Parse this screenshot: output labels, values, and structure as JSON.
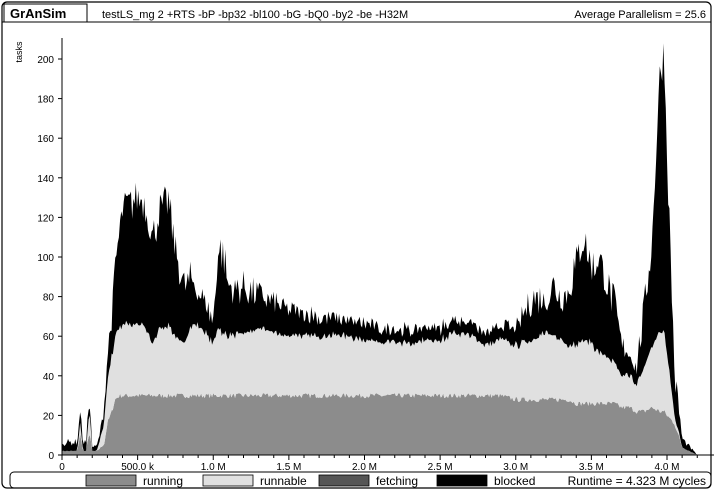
{
  "header": {
    "app_name": "GrAnSim",
    "command": "testLS_mg 2 +RTS -bP -bp32 -bl100 -bG -bQ0 -by2 -be -H32M",
    "parallelism": "Average Parallelism = 25.6"
  },
  "footer": {
    "runtime": "Runtime = 4.323 M cycles"
  },
  "colors": {
    "running": "#8c8c8c",
    "runnable": "#e0e0e0",
    "fetching": "#555555",
    "blocked": "#000000"
  },
  "chart_data": {
    "type": "area",
    "title": "",
    "xlabel": "",
    "ylabel": "tasks",
    "xlim": [
      0,
      4300000
    ],
    "ylim": [
      0,
      210
    ],
    "x_ticks": [
      0,
      500000,
      1000000,
      1500000,
      2000000,
      2500000,
      3000000,
      3500000,
      4000000
    ],
    "x_tick_labels": [
      "0",
      "500.0 k",
      "1.0 M",
      "1.5 M",
      "2.0 M",
      "2.5 M",
      "3.0 M",
      "3.5 M",
      "4.0 M"
    ],
    "y_ticks": [
      0,
      20,
      40,
      60,
      80,
      100,
      120,
      140,
      160,
      180,
      200
    ],
    "y_tick_labels": [
      "0",
      "20",
      "40",
      "60",
      "80",
      "100",
      "120",
      "140",
      "160",
      "180",
      "200"
    ],
    "stacked": true,
    "legend_position": "bottom",
    "x": [
      0,
      20000,
      60000,
      80000,
      100000,
      120000,
      140000,
      160000,
      180000,
      200000,
      230000,
      260000,
      280000,
      300000,
      330000,
      350000,
      380000,
      400000,
      430000,
      460000,
      500000,
      550000,
      600000,
      650000,
      700000,
      750000,
      800000,
      850000,
      900000,
      950000,
      1000000,
      1030000,
      1060000,
      1100000,
      1150000,
      1200000,
      1250000,
      1300000,
      1350000,
      1400000,
      1500000,
      1600000,
      1700000,
      1800000,
      1900000,
      2000000,
      2100000,
      2200000,
      2300000,
      2400000,
      2500000,
      2600000,
      2700000,
      2800000,
      2900000,
      3000000,
      3050000,
      3100000,
      3150000,
      3200000,
      3250000,
      3300000,
      3350000,
      3400000,
      3450000,
      3500000,
      3550000,
      3600000,
      3650000,
      3700000,
      3750000,
      3800000,
      3850000,
      3900000,
      3950000,
      3980000,
      4000000,
      4050000,
      4100000,
      4150000,
      4200000,
      4300000
    ],
    "series": [
      {
        "name": "running",
        "values": [
          2,
          2,
          2,
          2,
          2,
          10,
          2,
          2,
          12,
          2,
          2,
          4,
          6,
          16,
          22,
          28,
          30,
          30,
          30,
          30,
          30,
          30,
          30,
          30,
          30,
          30,
          30,
          30,
          30,
          30,
          30,
          30,
          30,
          30,
          30,
          30,
          30,
          30,
          30,
          30,
          30,
          30,
          30,
          30,
          30,
          30,
          30,
          30,
          30,
          30,
          30,
          30,
          30,
          30,
          30,
          28,
          28,
          28,
          28,
          28,
          28,
          28,
          28,
          26,
          26,
          26,
          26,
          26,
          26,
          24,
          24,
          22,
          22,
          24,
          22,
          22,
          20,
          16,
          4,
          2,
          0,
          0
        ]
      },
      {
        "name": "runnable",
        "values": [
          0,
          0,
          0,
          0,
          0,
          6,
          0,
          0,
          12,
          0,
          0,
          6,
          12,
          20,
          28,
          32,
          34,
          36,
          36,
          36,
          36,
          34,
          26,
          34,
          36,
          30,
          26,
          34,
          36,
          32,
          26,
          34,
          32,
          30,
          31,
          31,
          32,
          34,
          33,
          32,
          30,
          31,
          30,
          30,
          30,
          28,
          27,
          27,
          26,
          28,
          28,
          32,
          30,
          26,
          28,
          28,
          28,
          30,
          32,
          34,
          32,
          30,
          28,
          30,
          32,
          30,
          26,
          24,
          20,
          16,
          16,
          14,
          22,
          30,
          40,
          40,
          32,
          4,
          0,
          0,
          0,
          0
        ]
      },
      {
        "name": "fetching",
        "values": [
          0,
          0,
          0,
          0,
          0,
          0,
          0,
          0,
          0,
          0,
          0,
          0,
          0,
          0,
          0,
          0,
          0,
          0,
          0,
          0,
          0,
          0,
          0,
          0,
          0,
          0,
          0,
          0,
          0,
          0,
          0,
          0,
          0,
          0,
          0,
          0,
          0,
          0,
          0,
          0,
          0,
          0,
          0,
          0,
          0,
          0,
          0,
          0,
          0,
          0,
          0,
          0,
          0,
          0,
          0,
          0,
          0,
          0,
          0,
          0,
          0,
          0,
          0,
          0,
          0,
          0,
          0,
          0,
          0,
          0,
          0,
          0,
          0,
          0,
          0,
          0,
          0,
          0,
          0,
          0,
          0,
          0
        ]
      },
      {
        "name": "blocked",
        "values": [
          4,
          4,
          4,
          4,
          4,
          6,
          4,
          4,
          6,
          2,
          2,
          4,
          8,
          12,
          18,
          32,
          46,
          56,
          58,
          60,
          62,
          60,
          52,
          58,
          62,
          42,
          28,
          22,
          16,
          14,
          10,
          36,
          40,
          24,
          20,
          22,
          18,
          16,
          14,
          14,
          12,
          10,
          9,
          8,
          7,
          8,
          6,
          6,
          6,
          6,
          6,
          6,
          6,
          5,
          6,
          8,
          12,
          20,
          18,
          14,
          24,
          20,
          26,
          40,
          50,
          36,
          46,
          36,
          28,
          14,
          10,
          8,
          28,
          50,
          126,
          140,
          100,
          20,
          4,
          2,
          0,
          0
        ]
      }
    ]
  }
}
